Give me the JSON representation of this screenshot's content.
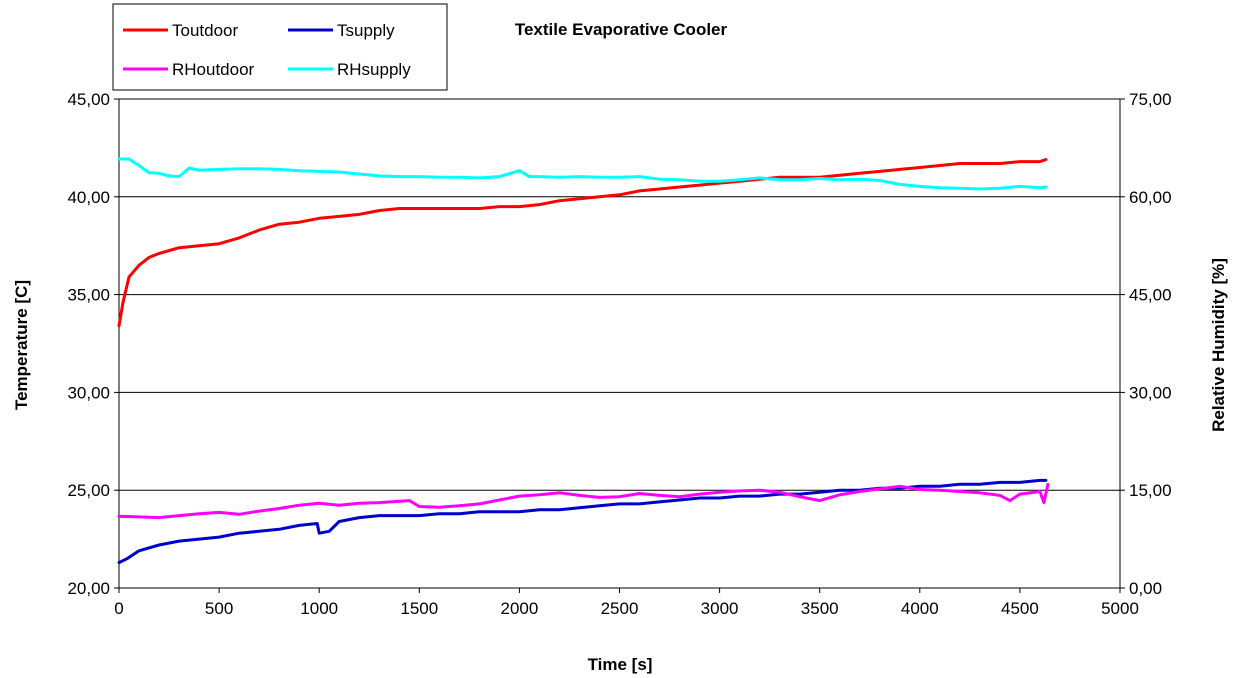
{
  "chart_data": {
    "type": "line",
    "title": "Textile Evaporative Cooler",
    "xlabel": "Time [s]",
    "ylabel": "Temperature [C]",
    "y2label": "Relative Humidity [%]",
    "xlim": [
      0,
      5000
    ],
    "ylim": [
      20,
      45
    ],
    "y2lim": [
      0,
      75
    ],
    "x_ticks": [
      "0",
      "500",
      "1000",
      "1500",
      "2000",
      "2500",
      "3000",
      "3500",
      "4000",
      "4500",
      "5000"
    ],
    "y_ticks": [
      "20,00",
      "25,00",
      "30,00",
      "35,00",
      "40,00",
      "45,00"
    ],
    "y2_ticks": [
      "0,00",
      "15,00",
      "30,00",
      "45,00",
      "60,00",
      "75,00"
    ],
    "grid": "horizontal",
    "legend": "top-left",
    "series": [
      {
        "name": "Toutdoor",
        "axis": "left",
        "color": "#ff0000",
        "points": [
          [
            0,
            33.4
          ],
          [
            20,
            34.6
          ],
          [
            50,
            35.9
          ],
          [
            100,
            36.5
          ],
          [
            150,
            36.9
          ],
          [
            200,
            37.1
          ],
          [
            300,
            37.4
          ],
          [
            400,
            37.5
          ],
          [
            500,
            37.6
          ],
          [
            600,
            37.9
          ],
          [
            700,
            38.3
          ],
          [
            800,
            38.6
          ],
          [
            900,
            38.7
          ],
          [
            1000,
            38.9
          ],
          [
            1100,
            39.0
          ],
          [
            1200,
            39.1
          ],
          [
            1300,
            39.3
          ],
          [
            1400,
            39.4
          ],
          [
            1500,
            39.4
          ],
          [
            1600,
            39.4
          ],
          [
            1700,
            39.4
          ],
          [
            1800,
            39.4
          ],
          [
            1900,
            39.5
          ],
          [
            2000,
            39.5
          ],
          [
            2100,
            39.6
          ],
          [
            2200,
            39.8
          ],
          [
            2300,
            39.9
          ],
          [
            2400,
            40.0
          ],
          [
            2500,
            40.1
          ],
          [
            2600,
            40.3
          ],
          [
            2700,
            40.4
          ],
          [
            2800,
            40.5
          ],
          [
            2900,
            40.6
          ],
          [
            3000,
            40.7
          ],
          [
            3100,
            40.8
          ],
          [
            3200,
            40.9
          ],
          [
            3300,
            41.0
          ],
          [
            3400,
            41.0
          ],
          [
            3500,
            41.0
          ],
          [
            3600,
            41.1
          ],
          [
            3700,
            41.2
          ],
          [
            3800,
            41.3
          ],
          [
            3900,
            41.4
          ],
          [
            4000,
            41.5
          ],
          [
            4100,
            41.6
          ],
          [
            4200,
            41.7
          ],
          [
            4300,
            41.7
          ],
          [
            4400,
            41.7
          ],
          [
            4500,
            41.8
          ],
          [
            4600,
            41.8
          ],
          [
            4630,
            41.9
          ]
        ]
      },
      {
        "name": "Tsupply",
        "axis": "left",
        "color": "#0000cc",
        "points": [
          [
            0,
            21.3
          ],
          [
            40,
            21.5
          ],
          [
            100,
            21.9
          ],
          [
            200,
            22.2
          ],
          [
            300,
            22.4
          ],
          [
            400,
            22.5
          ],
          [
            500,
            22.6
          ],
          [
            600,
            22.8
          ],
          [
            700,
            22.9
          ],
          [
            800,
            23.0
          ],
          [
            900,
            23.2
          ],
          [
            990,
            23.3
          ],
          [
            1000,
            22.8
          ],
          [
            1050,
            22.9
          ],
          [
            1100,
            23.4
          ],
          [
            1200,
            23.6
          ],
          [
            1300,
            23.7
          ],
          [
            1400,
            23.7
          ],
          [
            1500,
            23.7
          ],
          [
            1600,
            23.8
          ],
          [
            1700,
            23.8
          ],
          [
            1800,
            23.9
          ],
          [
            1900,
            23.9
          ],
          [
            2000,
            23.9
          ],
          [
            2100,
            24.0
          ],
          [
            2200,
            24.0
          ],
          [
            2300,
            24.1
          ],
          [
            2400,
            24.2
          ],
          [
            2500,
            24.3
          ],
          [
            2600,
            24.3
          ],
          [
            2700,
            24.4
          ],
          [
            2800,
            24.5
          ],
          [
            2900,
            24.6
          ],
          [
            3000,
            24.6
          ],
          [
            3100,
            24.7
          ],
          [
            3200,
            24.7
          ],
          [
            3300,
            24.8
          ],
          [
            3400,
            24.8
          ],
          [
            3500,
            24.9
          ],
          [
            3600,
            25.0
          ],
          [
            3700,
            25.0
          ],
          [
            3800,
            25.1
          ],
          [
            3900,
            25.1
          ],
          [
            4000,
            25.2
          ],
          [
            4100,
            25.2
          ],
          [
            4200,
            25.3
          ],
          [
            4300,
            25.3
          ],
          [
            4400,
            25.4
          ],
          [
            4500,
            25.4
          ],
          [
            4600,
            25.5
          ],
          [
            4630,
            25.5
          ]
        ]
      },
      {
        "name": "RHoutdoor",
        "axis": "right",
        "color": "#ff00ff",
        "points": [
          [
            0,
            11.0
          ],
          [
            100,
            10.9
          ],
          [
            200,
            10.8
          ],
          [
            300,
            11.1
          ],
          [
            400,
            11.4
          ],
          [
            500,
            11.6
          ],
          [
            600,
            11.3
          ],
          [
            700,
            11.8
          ],
          [
            800,
            12.2
          ],
          [
            900,
            12.7
          ],
          [
            1000,
            13.0
          ],
          [
            1100,
            12.7
          ],
          [
            1200,
            13.0
          ],
          [
            1300,
            13.1
          ],
          [
            1400,
            13.3
          ],
          [
            1450,
            13.4
          ],
          [
            1500,
            12.5
          ],
          [
            1600,
            12.4
          ],
          [
            1700,
            12.6
          ],
          [
            1800,
            12.9
          ],
          [
            1900,
            13.5
          ],
          [
            2000,
            14.1
          ],
          [
            2100,
            14.3
          ],
          [
            2200,
            14.6
          ],
          [
            2300,
            14.2
          ],
          [
            2400,
            13.9
          ],
          [
            2500,
            14.0
          ],
          [
            2600,
            14.5
          ],
          [
            2700,
            14.2
          ],
          [
            2800,
            14.0
          ],
          [
            2900,
            14.4
          ],
          [
            3000,
            14.7
          ],
          [
            3100,
            14.9
          ],
          [
            3200,
            15.0
          ],
          [
            3300,
            14.7
          ],
          [
            3400,
            14.0
          ],
          [
            3500,
            13.4
          ],
          [
            3600,
            14.3
          ],
          [
            3700,
            14.8
          ],
          [
            3800,
            15.2
          ],
          [
            3900,
            15.6
          ],
          [
            4000,
            15.1
          ],
          [
            4100,
            15.0
          ],
          [
            4200,
            14.8
          ],
          [
            4300,
            14.6
          ],
          [
            4400,
            14.2
          ],
          [
            4450,
            13.4
          ],
          [
            4500,
            14.4
          ],
          [
            4600,
            14.8
          ],
          [
            4620,
            13.1
          ],
          [
            4640,
            15.9
          ]
        ]
      },
      {
        "name": "RHsupply",
        "axis": "right",
        "color": "#00ffff",
        "points": [
          [
            0,
            65.8
          ],
          [
            50,
            65.8
          ],
          [
            100,
            64.8
          ],
          [
            150,
            63.7
          ],
          [
            200,
            63.6
          ],
          [
            250,
            63.2
          ],
          [
            300,
            63.1
          ],
          [
            350,
            64.4
          ],
          [
            400,
            64.1
          ],
          [
            500,
            64.2
          ],
          [
            600,
            64.3
          ],
          [
            700,
            64.3
          ],
          [
            800,
            64.2
          ],
          [
            900,
            64.0
          ],
          [
            1000,
            63.9
          ],
          [
            1100,
            63.8
          ],
          [
            1200,
            63.5
          ],
          [
            1300,
            63.2
          ],
          [
            1400,
            63.1
          ],
          [
            1500,
            63.1
          ],
          [
            1600,
            63.0
          ],
          [
            1700,
            63.0
          ],
          [
            1800,
            62.9
          ],
          [
            1900,
            63.1
          ],
          [
            2000,
            64.0
          ],
          [
            2050,
            63.1
          ],
          [
            2100,
            63.1
          ],
          [
            2200,
            63.0
          ],
          [
            2300,
            63.1
          ],
          [
            2400,
            63.0
          ],
          [
            2500,
            63.0
          ],
          [
            2600,
            63.1
          ],
          [
            2700,
            62.7
          ],
          [
            2800,
            62.6
          ],
          [
            2900,
            62.4
          ],
          [
            3000,
            62.4
          ],
          [
            3100,
            62.6
          ],
          [
            3200,
            62.9
          ],
          [
            3300,
            62.6
          ],
          [
            3400,
            62.6
          ],
          [
            3500,
            62.8
          ],
          [
            3600,
            62.6
          ],
          [
            3700,
            62.7
          ],
          [
            3800,
            62.5
          ],
          [
            3900,
            61.9
          ],
          [
            4000,
            61.6
          ],
          [
            4100,
            61.4
          ],
          [
            4200,
            61.3
          ],
          [
            4300,
            61.2
          ],
          [
            4400,
            61.3
          ],
          [
            4500,
            61.6
          ],
          [
            4600,
            61.4
          ],
          [
            4630,
            61.5
          ]
        ]
      }
    ]
  }
}
